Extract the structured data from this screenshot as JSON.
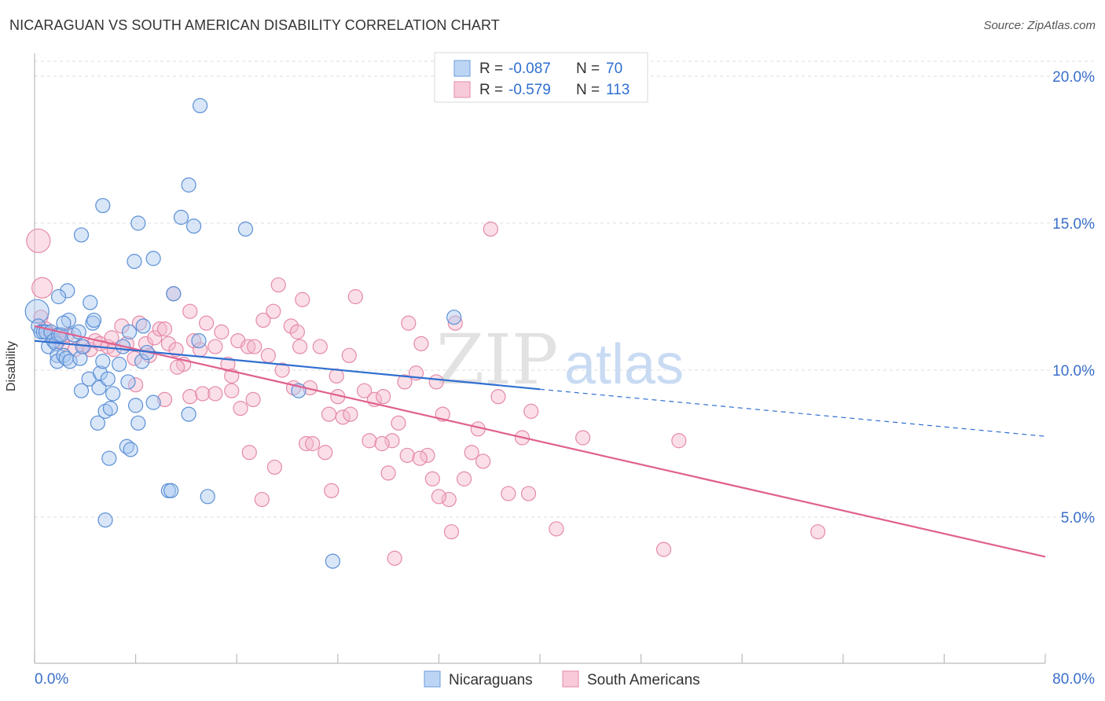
{
  "header": {
    "title": "NICARAGUAN VS SOUTH AMERICAN DISABILITY CORRELATION CHART",
    "source": "Source: ZipAtlas.com"
  },
  "watermark": {
    "zip": "ZIP",
    "atlas": "atlas"
  },
  "legend_top": [
    {
      "r_label": "R =",
      "r_value": "-0.087",
      "n_label": "N =",
      "n_value": "70"
    },
    {
      "r_label": "R =",
      "r_value": "-0.579",
      "n_label": "N =",
      "n_value": "113"
    }
  ],
  "legend_bottom": [
    "Nicaraguans",
    "South Americans"
  ],
  "colors": {
    "blue_fill": "#a8c8ef",
    "blue_stroke": "#5b8fd6",
    "blue_line": "#2f6fd0",
    "pink_fill": "#f5b8cc",
    "pink_stroke": "#e58aa8",
    "pink_line": "#e0608e",
    "grid": "#dddddd",
    "axis_text": "#3a6fc9",
    "value_text": "#2f6fd0"
  },
  "chart_data": {
    "type": "scatter",
    "title": "NICARAGUAN VS SOUTH AMERICAN DISABILITY CORRELATION CHART",
    "xlabel": "",
    "ylabel": "Disability",
    "xlim": [
      0,
      80
    ],
    "ylim": [
      0,
      20.5
    ],
    "x_tick_labels": [
      "0.0%",
      "80.0%"
    ],
    "y_ticks": [
      5,
      10,
      15,
      20
    ],
    "y_tick_labels": [
      "5.0%",
      "10.0%",
      "15.0%",
      "20.0%"
    ],
    "grid": true,
    "legend_position": "top-center",
    "series": [
      {
        "name": "Nicaraguans",
        "r": -0.087,
        "n": 70,
        "trend": {
          "x0": 0,
          "y0": 11.0,
          "x1": 40,
          "y1": 9.35,
          "dashed_to_x": 80,
          "dashed_to_y": 7.75
        },
        "points": [
          [
            0.2,
            12.0
          ],
          [
            0.3,
            11.5
          ],
          [
            0.5,
            11.3
          ],
          [
            0.7,
            11.3
          ],
          [
            0.9,
            11.3
          ],
          [
            1.1,
            10.8
          ],
          [
            1.3,
            11.3
          ],
          [
            1.5,
            11.0
          ],
          [
            1.7,
            10.9
          ],
          [
            1.9,
            11.2
          ],
          [
            1.8,
            10.5
          ],
          [
            1.8,
            10.3
          ],
          [
            2.1,
            11.2
          ],
          [
            2.3,
            10.5
          ],
          [
            2.5,
            10.4
          ],
          [
            2.6,
            12.7
          ],
          [
            2.8,
            10.3
          ],
          [
            1.9,
            12.5
          ],
          [
            2.7,
            11.7
          ],
          [
            3.1,
            11.2
          ],
          [
            3.6,
            10.4
          ],
          [
            3.5,
            11.3
          ],
          [
            3.8,
            10.8
          ],
          [
            4.4,
            12.3
          ],
          [
            4.6,
            11.6
          ],
          [
            4.7,
            11.7
          ],
          [
            2.3,
            11.6
          ],
          [
            3.7,
            9.3
          ],
          [
            4.3,
            9.7
          ],
          [
            5.1,
            9.4
          ],
          [
            5.2,
            9.9
          ],
          [
            5.4,
            10.3
          ],
          [
            5.8,
            9.7
          ],
          [
            5.6,
            8.6
          ],
          [
            6.0,
            8.7
          ],
          [
            6.2,
            9.2
          ],
          [
            5.0,
            8.2
          ],
          [
            6.7,
            10.2
          ],
          [
            7.0,
            10.8
          ],
          [
            7.5,
            11.3
          ],
          [
            7.4,
            9.6
          ],
          [
            8.0,
            8.8
          ],
          [
            8.2,
            8.2
          ],
          [
            8.5,
            10.3
          ],
          [
            8.9,
            10.6
          ],
          [
            9.4,
            8.9
          ],
          [
            7.9,
            13.7
          ],
          [
            9.4,
            13.8
          ],
          [
            8.2,
            15.0
          ],
          [
            11.0,
            12.6
          ],
          [
            11.6,
            15.2
          ],
          [
            12.2,
            16.3
          ],
          [
            12.6,
            14.9
          ],
          [
            13.1,
            19.0
          ],
          [
            16.7,
            14.8
          ],
          [
            3.7,
            14.6
          ],
          [
            5.4,
            15.6
          ],
          [
            8.6,
            11.5
          ],
          [
            7.3,
            7.4
          ],
          [
            7.6,
            7.3
          ],
          [
            5.9,
            7.0
          ],
          [
            12.2,
            8.5
          ],
          [
            13.7,
            5.7
          ],
          [
            10.6,
            5.9
          ],
          [
            10.8,
            5.9
          ],
          [
            5.6,
            4.9
          ],
          [
            20.9,
            9.3
          ],
          [
            23.6,
            3.5
          ],
          [
            33.2,
            11.8
          ],
          [
            13.0,
            11.0
          ]
        ]
      },
      {
        "name": "South Americans",
        "r": -0.579,
        "n": 113,
        "trend": {
          "x0": 0,
          "y0": 11.5,
          "x1": 80,
          "y1": 3.65
        },
        "points": [
          [
            0.3,
            14.4
          ],
          [
            0.6,
            12.8
          ],
          [
            0.5,
            11.8
          ],
          [
            0.9,
            11.4
          ],
          [
            1.4,
            11.2
          ],
          [
            1.9,
            11.0
          ],
          [
            2.2,
            10.9
          ],
          [
            2.6,
            11.2
          ],
          [
            3.2,
            10.7
          ],
          [
            3.9,
            10.8
          ],
          [
            4.4,
            10.7
          ],
          [
            4.8,
            11.0
          ],
          [
            5.2,
            10.9
          ],
          [
            5.8,
            10.8
          ],
          [
            6.1,
            11.1
          ],
          [
            6.3,
            10.7
          ],
          [
            6.9,
            11.5
          ],
          [
            7.3,
            10.9
          ],
          [
            7.9,
            10.4
          ],
          [
            8.3,
            11.6
          ],
          [
            8.8,
            10.9
          ],
          [
            9.1,
            10.5
          ],
          [
            9.5,
            11.1
          ],
          [
            9.9,
            11.4
          ],
          [
            10.3,
            11.4
          ],
          [
            10.6,
            10.9
          ],
          [
            11.0,
            12.6
          ],
          [
            11.2,
            10.7
          ],
          [
            11.8,
            10.2
          ],
          [
            12.3,
            12.0
          ],
          [
            12.6,
            11.0
          ],
          [
            13.1,
            10.7
          ],
          [
            13.6,
            11.6
          ],
          [
            14.3,
            10.8
          ],
          [
            14.8,
            11.3
          ],
          [
            15.3,
            10.2
          ],
          [
            15.6,
            9.8
          ],
          [
            16.1,
            11.0
          ],
          [
            16.9,
            10.8
          ],
          [
            17.4,
            10.8
          ],
          [
            18.1,
            11.7
          ],
          [
            18.5,
            10.5
          ],
          [
            18.9,
            12.0
          ],
          [
            19.3,
            12.9
          ],
          [
            19.6,
            10.0
          ],
          [
            20.3,
            11.5
          ],
          [
            20.8,
            11.3
          ],
          [
            21.0,
            10.8
          ],
          [
            21.2,
            12.4
          ],
          [
            21.8,
            9.4
          ],
          [
            22.6,
            10.8
          ],
          [
            23.3,
            8.5
          ],
          [
            23.9,
            9.8
          ],
          [
            24.4,
            8.4
          ],
          [
            24.9,
            10.5
          ],
          [
            25.4,
            12.5
          ],
          [
            26.1,
            9.3
          ],
          [
            26.9,
            9.0
          ],
          [
            27.6,
            9.1
          ],
          [
            28.3,
            7.6
          ],
          [
            28.8,
            8.2
          ],
          [
            29.3,
            9.6
          ],
          [
            29.6,
            11.6
          ],
          [
            30.2,
            9.9
          ],
          [
            30.6,
            10.9
          ],
          [
            31.1,
            7.1
          ],
          [
            31.8,
            9.6
          ],
          [
            32.3,
            8.5
          ],
          [
            33.3,
            11.6
          ],
          [
            34.0,
            6.3
          ],
          [
            34.6,
            7.2
          ],
          [
            35.1,
            8.0
          ],
          [
            36.1,
            14.8
          ],
          [
            36.7,
            9.1
          ],
          [
            37.5,
            5.8
          ],
          [
            38.6,
            7.7
          ],
          [
            39.3,
            8.6
          ],
          [
            31.5,
            6.3
          ],
          [
            32.8,
            5.6
          ],
          [
            39.1,
            5.8
          ],
          [
            8.0,
            9.5
          ],
          [
            10.3,
            9.0
          ],
          [
            11.3,
            10.1
          ],
          [
            12.3,
            9.1
          ],
          [
            13.3,
            9.2
          ],
          [
            14.3,
            9.2
          ],
          [
            15.6,
            9.3
          ],
          [
            16.3,
            8.7
          ],
          [
            17.0,
            7.2
          ],
          [
            17.3,
            9.0
          ],
          [
            18.0,
            5.6
          ],
          [
            19.0,
            6.7
          ],
          [
            20.5,
            9.4
          ],
          [
            21.5,
            7.5
          ],
          [
            22.0,
            7.5
          ],
          [
            23.0,
            7.2
          ],
          [
            23.5,
            5.9
          ],
          [
            24.0,
            9.1
          ],
          [
            25.0,
            8.5
          ],
          [
            26.5,
            7.6
          ],
          [
            27.5,
            7.5
          ],
          [
            28.0,
            6.5
          ],
          [
            28.5,
            3.6
          ],
          [
            29.5,
            7.1
          ],
          [
            30.5,
            7.0
          ],
          [
            32.0,
            5.7
          ],
          [
            33.0,
            4.5
          ],
          [
            35.5,
            6.9
          ],
          [
            41.3,
            4.6
          ],
          [
            43.4,
            7.7
          ],
          [
            49.8,
            3.9
          ],
          [
            51.0,
            7.6
          ],
          [
            62.0,
            4.5
          ]
        ]
      }
    ]
  }
}
